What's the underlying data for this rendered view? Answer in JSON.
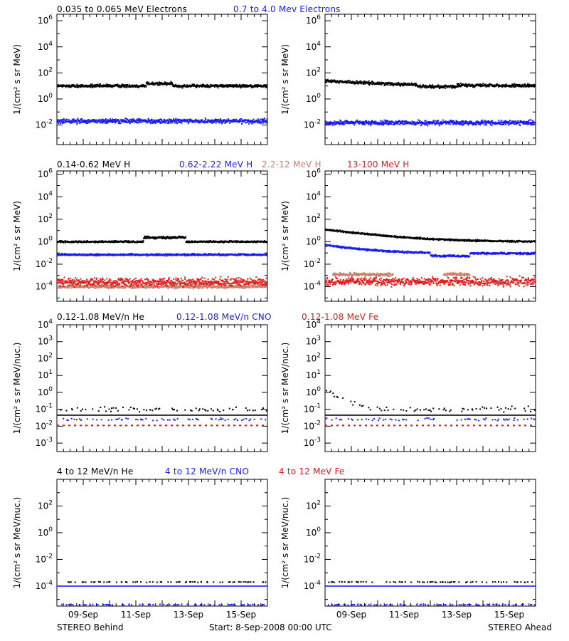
{
  "colors": {
    "black": "#000000",
    "blue": "#1a1aff",
    "tan": "#c8826e",
    "red": "#e41a1a"
  },
  "footer": {
    "left": "STEREO Behind",
    "center": "Start:  8-Sep-2008 00:00 UTC",
    "right": "STEREO Ahead"
  },
  "chart_data": [
    {
      "type": "scatter",
      "row": 0,
      "spacecraft": "STEREO Behind",
      "ylabel": "1/(cm² s sr MeV)",
      "yscale": "log",
      "ylim_exp": [
        -3.5,
        6.5
      ],
      "ytick_exps": [
        -2,
        0,
        2,
        4,
        6
      ],
      "legend": [
        {
          "label": "0.035 to 0.065 MeV Electrons",
          "color": "black"
        },
        {
          "label": "0.7 to 4.0 Mev Electrons",
          "color": "blue"
        }
      ],
      "series": [
        {
          "color": "black",
          "baseline": 10,
          "noise": 0.08,
          "bumps": [
            {
              "start": 3.4,
              "end": 4.4,
              "factor": 1.5
            }
          ]
        },
        {
          "color": "blue",
          "baseline": 0.02,
          "noise": 0.12
        }
      ]
    },
    {
      "type": "scatter",
      "row": 0,
      "spacecraft": "STEREO Ahead",
      "ylabel": "1/(cm² s sr MeV)",
      "yscale": "log",
      "ylim_exp": [
        -3.5,
        6.5
      ],
      "ytick_exps": [
        -2,
        0,
        2,
        4,
        6
      ],
      "series": [
        {
          "color": "black",
          "baseline": 10,
          "noise": 0.08,
          "start_value": 25,
          "decay_days": 2.0,
          "dip": {
            "start": 3.5,
            "end": 5.0,
            "factor": 0.75
          }
        },
        {
          "color": "blue",
          "baseline": 0.015,
          "noise": 0.12
        }
      ]
    },
    {
      "type": "scatter",
      "row": 1,
      "spacecraft": "STEREO Behind",
      "ylabel": "1/(cm² s sr MeV)",
      "yscale": "log",
      "ylim_exp": [
        -5.3,
        6.3
      ],
      "ytick_exps": [
        -4,
        -2,
        0,
        2,
        4,
        6
      ],
      "legend": [
        {
          "label": "0.14-0.62 MeV H",
          "color": "black"
        },
        {
          "label": "0.62-2.22 MeV H",
          "color": "blue"
        },
        {
          "label": "2.2-12 MeV H",
          "color": "tan"
        },
        {
          "label": "13-100 MeV H",
          "color": "red"
        }
      ],
      "series": [
        {
          "color": "black",
          "baseline": 1.0,
          "noise": 0.05,
          "bumps": [
            {
              "start": 3.3,
              "end": 4.9,
              "factor": 2.4
            }
          ]
        },
        {
          "color": "blue",
          "baseline": 0.07,
          "noise": 0.06
        },
        {
          "color": "tan",
          "baseline": 0.0001,
          "noise": 0.1
        },
        {
          "color": "red",
          "baseline": 0.00025,
          "noise": 0.25
        }
      ]
    },
    {
      "type": "scatter",
      "row": 1,
      "spacecraft": "STEREO Ahead",
      "ylabel": "1/(cm² s sr MeV)",
      "yscale": "log",
      "ylim_exp": [
        -5.3,
        6.3
      ],
      "ytick_exps": [
        -4,
        -2,
        0,
        2,
        4,
        6
      ],
      "series": [
        {
          "color": "black",
          "baseline": 1.0,
          "noise": 0.05,
          "start_value": 12,
          "decay_days": 1.5
        },
        {
          "color": "blue",
          "baseline": 0.09,
          "noise": 0.06,
          "start_value": 0.5,
          "decay_days": 1.2,
          "dip": {
            "start": 4.0,
            "end": 5.5,
            "factor": 0.55
          }
        },
        {
          "color": "tan",
          "baseline": 0.0012,
          "noise": 0.1,
          "segments": [
            [
              0.3,
              2.6
            ],
            [
              4.5,
              5.5
            ]
          ]
        },
        {
          "color": "red",
          "baseline": 0.00028,
          "noise": 0.25
        }
      ]
    },
    {
      "type": "scatter",
      "row": 2,
      "spacecraft": "STEREO Behind",
      "ylabel": "1/(cm² s sr MeV/nuc.)",
      "yscale": "log",
      "ylim_exp": [
        -3.5,
        4
      ],
      "ytick_exps": [
        -3,
        -2,
        -1,
        0,
        1,
        2,
        3,
        4
      ],
      "legend": [
        {
          "label": "0.12-1.08 MeV/n He",
          "color": "black"
        },
        {
          "label": "0.12-1.08 MeV/n CNO",
          "color": "blue"
        },
        {
          "label": "0.12-1.08 MeV Fe",
          "color": "red"
        }
      ],
      "series": [
        {
          "color": "black",
          "baseline": 0.1,
          "noise": 0.1,
          "sparse": true
        },
        {
          "color": "black",
          "baseline": 0.045,
          "line": true
        },
        {
          "color": "blue",
          "baseline": 0.025,
          "sparse": true,
          "noise": 0.05
        },
        {
          "color": "blue",
          "baseline": 0.011,
          "dashed": true
        },
        {
          "color": "red",
          "baseline": 0.011,
          "dashed": true
        }
      ]
    },
    {
      "type": "scatter",
      "row": 2,
      "spacecraft": "STEREO Ahead",
      "ylabel": "1/(cm² s sr MeV/nuc.)",
      "yscale": "log",
      "ylim_exp": [
        -3.5,
        4
      ],
      "ytick_exps": [
        -3,
        -2,
        -1,
        0,
        1,
        2,
        3,
        4
      ],
      "series": [
        {
          "color": "black",
          "baseline": 0.1,
          "noise": 0.1,
          "sparse": true,
          "start_value": 1.5,
          "decay_days": 0.45
        },
        {
          "color": "black",
          "baseline": 0.045,
          "line": true
        },
        {
          "color": "blue",
          "baseline": 0.025,
          "sparse": true,
          "noise": 0.05
        },
        {
          "color": "blue",
          "baseline": 0.011,
          "dashed": true
        },
        {
          "color": "red",
          "baseline": 0.011,
          "dashed": true
        }
      ]
    },
    {
      "type": "scatter",
      "row": 3,
      "spacecraft": "STEREO Behind",
      "ylabel": "1/(cm² s sr MeV/nuc.)",
      "yscale": "log",
      "ylim_exp": [
        -5.5,
        4
      ],
      "ytick_exps": [
        -4,
        -2,
        0,
        2
      ],
      "legend": [
        {
          "label": "4 to 12 MeV/n He",
          "color": "black"
        },
        {
          "label": "4 to 12 MeV/n CNO",
          "color": "blue"
        },
        {
          "label": "4 to 12 MeV Fe",
          "color": "red"
        }
      ],
      "series": [
        {
          "color": "black",
          "baseline": 0.0002,
          "sparse": true,
          "noise": 0.02
        },
        {
          "color": "blue",
          "baseline": 0.0001,
          "line": true
        },
        {
          "color": "blue",
          "baseline": 4e-06,
          "sparse": true,
          "noise": 0.02
        }
      ]
    },
    {
      "type": "scatter",
      "row": 3,
      "spacecraft": "STEREO Ahead",
      "ylabel": "1/(cm² s sr MeV/nuc.)",
      "yscale": "log",
      "ylim_exp": [
        -5.5,
        4
      ],
      "ytick_exps": [
        -4,
        -2,
        0,
        2
      ],
      "series": [
        {
          "color": "black",
          "baseline": 0.0002,
          "sparse": true,
          "noise": 0.02
        },
        {
          "color": "blue",
          "baseline": 0.0001,
          "line": true
        },
        {
          "color": "blue",
          "baseline": 4e-06,
          "sparse": true,
          "noise": 0.02
        }
      ]
    }
  ],
  "xaxis": {
    "days": 8,
    "tick_labels": [
      "09-Sep",
      "11-Sep",
      "13-Sep",
      "15-Sep"
    ],
    "tick_days": [
      1,
      3,
      5,
      7
    ]
  }
}
